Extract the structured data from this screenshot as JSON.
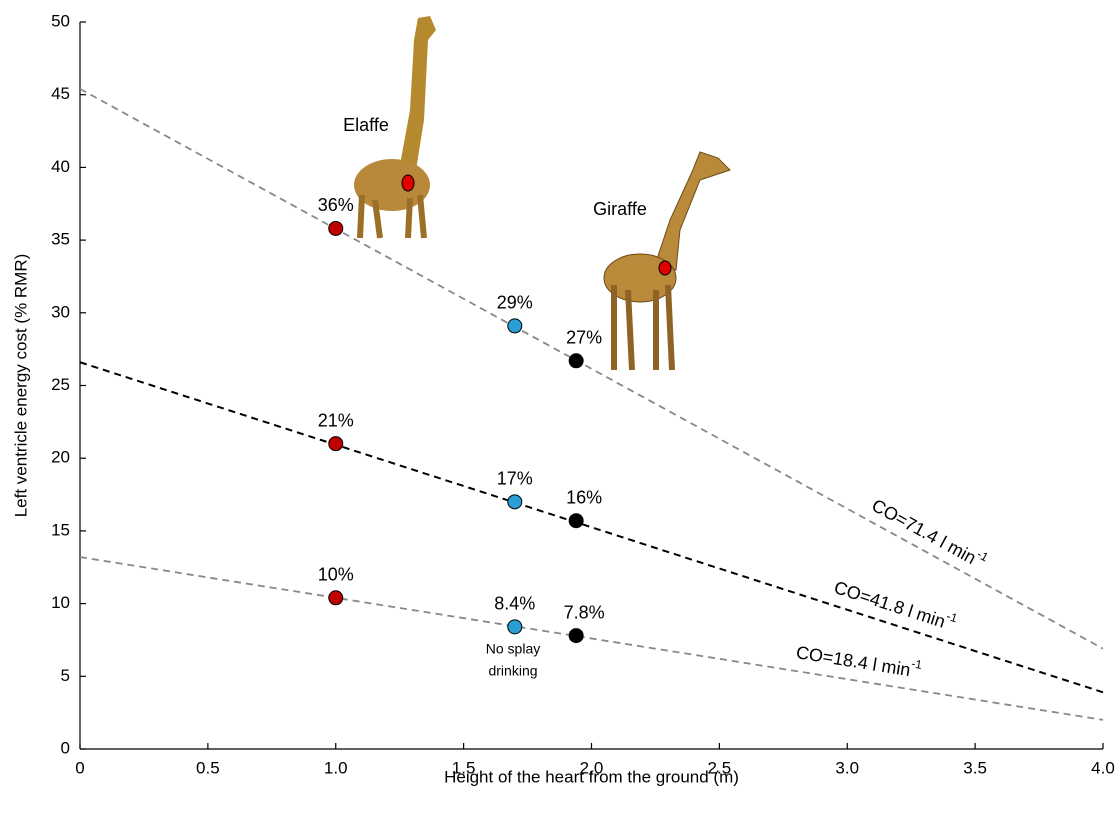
{
  "chart_data": {
    "type": "line",
    "x_label": "Height of the heart from the ground (m)",
    "y_label": "Left ventricle energy cost (% RMR)",
    "xlim": [
      0,
      4
    ],
    "ylim": [
      0,
      50
    ],
    "xticks": [
      0,
      0.5,
      {
        "value": 1,
        "label": "1.0"
      },
      1.5,
      {
        "value": 2,
        "label": "2.0"
      },
      2.5,
      {
        "value": 3,
        "label": "3.0"
      },
      {
        "value": 3.5,
        "label": "3.5"
      },
      {
        "value": 4,
        "label": "4.0"
      }
    ],
    "yticks": [
      0,
      5,
      10,
      15,
      20,
      25,
      30,
      35,
      40,
      45,
      50
    ],
    "series": [
      {
        "label": "CO=71.4 l min",
        "label_sup": "-1",
        "color": "#888888",
        "x": [
          0,
          4
        ],
        "values": [
          45.4,
          6.9
        ],
        "points": {
          "x": [
            1.0,
            1.7,
            1.94
          ],
          "values": [
            35.8,
            29.1,
            26.7
          ],
          "value_labels": [
            "36%",
            "29%",
            "27%"
          ]
        }
      },
      {
        "label": "CO=41.8 l min",
        "label_sup": "-1",
        "color": "#000000",
        "x": [
          0,
          4
        ],
        "values": [
          26.6,
          3.9
        ],
        "points": {
          "x": [
            1.0,
            1.7,
            1.94
          ],
          "values": [
            21.0,
            17.0,
            15.7
          ],
          "value_labels": [
            "21%",
            "17%",
            "16%"
          ]
        }
      },
      {
        "label": "CO=18.4 l min",
        "label_sup": "-1",
        "color": "#888888",
        "x": [
          0,
          4
        ],
        "values": [
          13.2,
          2.0
        ],
        "points": {
          "x": [
            1.0,
            1.7,
            1.94
          ],
          "values": [
            10.4,
            8.4,
            7.8
          ],
          "value_labels": [
            "10%",
            "8.4%",
            "7.8%"
          ]
        }
      }
    ],
    "point_colors": [
      "#c00000",
      "#2a9fd6",
      "#000000"
    ],
    "annotations": [
      {
        "text": "Elaffe",
        "color": "#a50f0f"
      },
      {
        "text": "Giraffe",
        "color": "#000000"
      },
      {
        "text": [
          "No splay",
          "drinking"
        ],
        "color": "#4a9ad8"
      }
    ]
  }
}
